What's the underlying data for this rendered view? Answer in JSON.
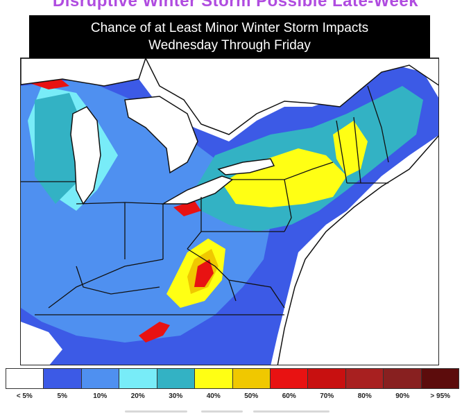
{
  "banner": {
    "text": "Disruptive Winter Storm Possible Late-Week"
  },
  "title": {
    "line1": "Chance of at Least Minor Winter Storm Impacts",
    "line2": "Wednesday Through Friday"
  },
  "legend": {
    "items": [
      {
        "label": "< 5%",
        "color": "#ffffff"
      },
      {
        "label": "5%",
        "color": "#3c5ae6"
      },
      {
        "label": "10%",
        "color": "#4f90f0"
      },
      {
        "label": "20%",
        "color": "#78ecf8"
      },
      {
        "label": "30%",
        "color": "#33b2c4"
      },
      {
        "label": "40%",
        "color": "#ffff14"
      },
      {
        "label": "50%",
        "color": "#f0c800"
      },
      {
        "label": "60%",
        "color": "#e81212"
      },
      {
        "label": "70%",
        "color": "#c81010"
      },
      {
        "label": "80%",
        "color": "#a82020"
      },
      {
        "label": "90%",
        "color": "#882020"
      },
      {
        "label": "> 95%",
        "color": "#5c0c0c"
      }
    ]
  },
  "colors": {
    "lake": "#ffffff",
    "ocean": "#ffffff",
    "border": "#111111",
    "banner_text": "#b04ce0"
  }
}
